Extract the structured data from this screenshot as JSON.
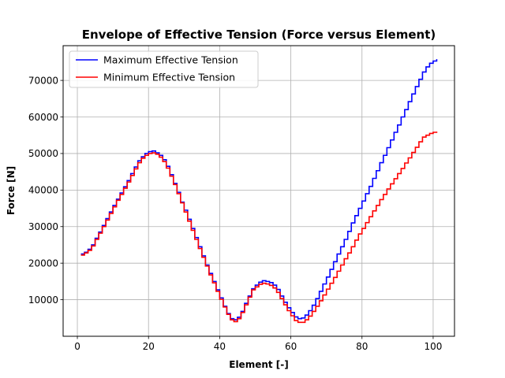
{
  "chart_data": {
    "type": "line",
    "title": "Envelope of Effective Tension (Force versus Element)",
    "xlabel": "Element [-]",
    "ylabel": "Force [N]",
    "xlim": [
      -4,
      106
    ],
    "ylim": [
      0,
      79500
    ],
    "xticks": [
      0,
      20,
      40,
      60,
      80,
      100
    ],
    "yticks": [
      10000,
      20000,
      30000,
      40000,
      50000,
      60000,
      70000
    ],
    "grid": true,
    "legend_position": "upper-left",
    "step": "post",
    "x": [
      1,
      2,
      3,
      4,
      5,
      6,
      7,
      8,
      9,
      10,
      11,
      12,
      13,
      14,
      15,
      16,
      17,
      18,
      19,
      20,
      21,
      22,
      23,
      24,
      25,
      26,
      27,
      28,
      29,
      30,
      31,
      32,
      33,
      34,
      35,
      36,
      37,
      38,
      39,
      40,
      41,
      42,
      43,
      44,
      45,
      46,
      47,
      48,
      49,
      50,
      51,
      52,
      53,
      54,
      55,
      56,
      57,
      58,
      59,
      60,
      61,
      62,
      63,
      64,
      65,
      66,
      67,
      68,
      69,
      70,
      71,
      72,
      73,
      74,
      75,
      76,
      77,
      78,
      79,
      80,
      81,
      82,
      83,
      84,
      85,
      86,
      87,
      88,
      89,
      90,
      91,
      92,
      93,
      94,
      95,
      96,
      97,
      98,
      99,
      100,
      101
    ],
    "series": [
      {
        "name": "Maximum Effective Tension",
        "color": "#0000ff",
        "values": [
          22500,
          23000,
          23800,
          25000,
          26800,
          28500,
          30300,
          32200,
          34000,
          35800,
          37500,
          39200,
          40900,
          42600,
          44500,
          46300,
          48000,
          49100,
          50000,
          50500,
          50700,
          50200,
          49500,
          48300,
          46500,
          44200,
          41800,
          39400,
          36700,
          34500,
          32000,
          29500,
          27000,
          24500,
          22000,
          19500,
          17200,
          15000,
          12700,
          10500,
          8200,
          6200,
          4800,
          4500,
          5200,
          6800,
          9000,
          11000,
          13000,
          14000,
          14800,
          15200,
          15000,
          14700,
          14000,
          12800,
          11000,
          9300,
          7800,
          6500,
          5300,
          4800,
          5000,
          5800,
          7000,
          8500,
          10300,
          12300,
          14300,
          16200,
          18300,
          20400,
          22500,
          24500,
          26500,
          28700,
          31000,
          33000,
          35000,
          37000,
          39000,
          41000,
          43200,
          45300,
          47500,
          49500,
          51600,
          53700,
          55800,
          57800,
          60000,
          62000,
          64200,
          66300,
          68300,
          70300,
          72300,
          73700,
          74700,
          75300,
          75800
        ]
      },
      {
        "name": "Minimum Effective Tension",
        "color": "#ff0000",
        "values": [
          22200,
          22800,
          23500,
          24700,
          26500,
          28200,
          30000,
          31800,
          33600,
          35400,
          37200,
          38800,
          40500,
          42200,
          44000,
          45800,
          47500,
          48700,
          49500,
          50000,
          50200,
          49800,
          49000,
          47800,
          46000,
          43800,
          41500,
          39000,
          36500,
          34000,
          31500,
          29000,
          26500,
          24000,
          21600,
          19200,
          16800,
          14600,
          12300,
          10100,
          8000,
          6000,
          4500,
          4000,
          4800,
          6500,
          8600,
          10700,
          12700,
          13500,
          14200,
          14500,
          14300,
          13900,
          13200,
          12000,
          10300,
          8600,
          7000,
          5600,
          4300,
          3800,
          3800,
          4500,
          5500,
          6800,
          8200,
          9700,
          11300,
          12900,
          14500,
          16100,
          17800,
          19500,
          21200,
          22800,
          24500,
          26300,
          28000,
          29500,
          31100,
          32700,
          34300,
          35800,
          37400,
          38800,
          40300,
          41700,
          43100,
          44500,
          45900,
          47400,
          48800,
          50300,
          51700,
          53200,
          54500,
          55000,
          55500,
          55800,
          56000
        ]
      }
    ]
  }
}
